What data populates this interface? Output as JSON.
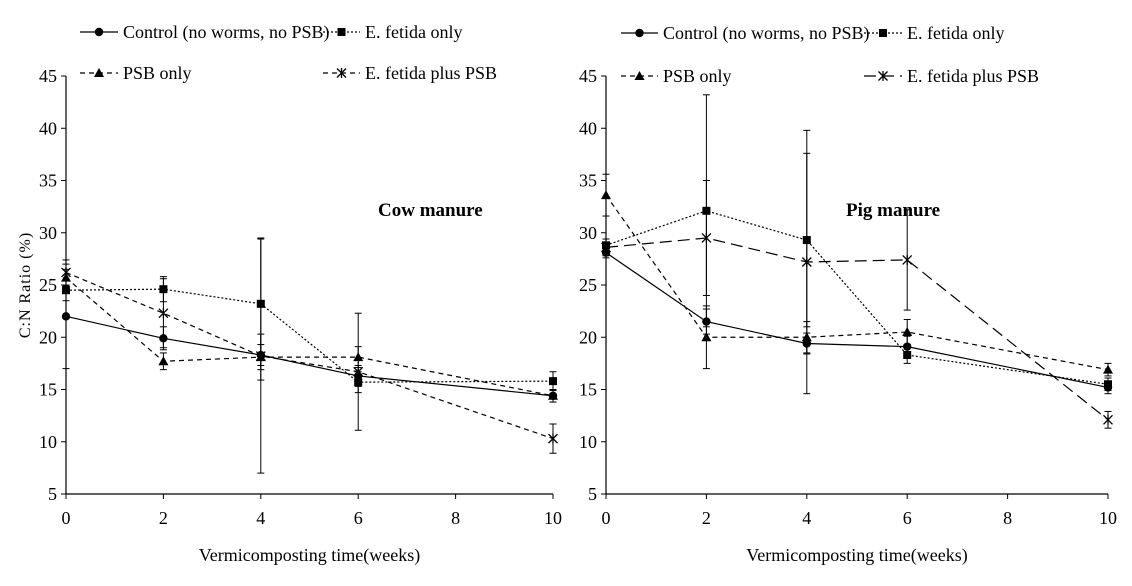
{
  "chart_data": [
    {
      "type": "line",
      "title": "",
      "annotation": "Cow manure",
      "xlabel": "Vermicomposting time(weeks)",
      "ylabel": "C:N Ratio (%)",
      "xlim": [
        0,
        10
      ],
      "ylim": [
        5,
        45
      ],
      "x_ticks": [
        "0",
        "2",
        "4",
        "6",
        "8",
        "10"
      ],
      "y_ticks": [
        "5",
        "10",
        "15",
        "20",
        "25",
        "30",
        "35",
        "40",
        "45"
      ],
      "legend": [
        "Control (no worms, no PSB)",
        "E. fetida only",
        "PSB only",
        "E. fetida plus PSB"
      ],
      "series": [
        {
          "name": "Control (no worms, no PSB)",
          "marker": "circle",
          "dash": "solid",
          "x": [
            0,
            2,
            4,
            6,
            10
          ],
          "values": [
            22.0,
            19.9,
            18.3,
            16.3,
            14.4
          ],
          "error": [
            5.0,
            1.1,
            1.0,
            1.0,
            0.6
          ]
        },
        {
          "name": "E. fetida only",
          "marker": "square",
          "dash": "dotted",
          "x": [
            0,
            2,
            4,
            6,
            10
          ],
          "values": [
            24.5,
            24.6,
            23.2,
            15.7,
            15.8
          ],
          "error": [
            1.0,
            1.2,
            6.3,
            1.0,
            0.9
          ]
        },
        {
          "name": "PSB only",
          "marker": "triangle",
          "dash": "dashed",
          "x": [
            0,
            2,
            4,
            6,
            10
          ],
          "values": [
            25.7,
            17.7,
            18.1,
            18.1,
            14.4
          ],
          "error": [
            0.8,
            0.8,
            2.2,
            1.0,
            0.6
          ]
        },
        {
          "name": "E. fetida plus PSB",
          "marker": "star",
          "dash": "dashed",
          "x": [
            0,
            2,
            4,
            6,
            10
          ],
          "values": [
            26.2,
            22.3,
            18.2,
            16.7,
            10.3
          ],
          "error": [
            1.2,
            3.3,
            11.2,
            5.6,
            1.4
          ]
        }
      ]
    },
    {
      "type": "line",
      "title": "",
      "annotation": "Pig manure",
      "xlabel": "Vermicomposting time(weeks)",
      "ylabel": "",
      "xlim": [
        0,
        10
      ],
      "ylim": [
        5,
        45
      ],
      "x_ticks": [
        "0",
        "2",
        "4",
        "6",
        "8",
        "10"
      ],
      "y_ticks": [
        "5",
        "10",
        "15",
        "20",
        "25",
        "30",
        "35",
        "40",
        "45"
      ],
      "legend": [
        "Control (no worms, no PSB)",
        "E. fetida only",
        "PSB only",
        "E. fetida plus PSB"
      ],
      "series": [
        {
          "name": "Control (no worms, no PSB)",
          "marker": "circle",
          "dash": "solid",
          "x": [
            0,
            2,
            4,
            6,
            10
          ],
          "values": [
            28.1,
            21.5,
            19.4,
            19.1,
            15.2
          ],
          "error": [
            0.5,
            1.2,
            1.0,
            1.0,
            0.6
          ]
        },
        {
          "name": "E. fetida only",
          "marker": "square",
          "dash": "dotted",
          "x": [
            0,
            2,
            4,
            6,
            10
          ],
          "values": [
            28.8,
            32.1,
            29.3,
            18.3,
            15.5
          ],
          "error": [
            0.6,
            11.1,
            8.3,
            0.8,
            0.6
          ]
        },
        {
          "name": "PSB only",
          "marker": "triangle",
          "dash": "dashed",
          "x": [
            0,
            2,
            4,
            6,
            10
          ],
          "values": [
            33.6,
            20.0,
            20.0,
            20.5,
            16.9
          ],
          "error": [
            2.0,
            3.0,
            1.5,
            1.2,
            0.6
          ]
        },
        {
          "name": "E. fetida plus PSB",
          "marker": "star",
          "dash": "longdash",
          "x": [
            0,
            2,
            4,
            6,
            10
          ],
          "values": [
            28.6,
            29.5,
            27.2,
            27.4,
            12.1
          ],
          "error": [
            0.8,
            5.5,
            12.6,
            4.8,
            0.8
          ]
        }
      ]
    }
  ]
}
